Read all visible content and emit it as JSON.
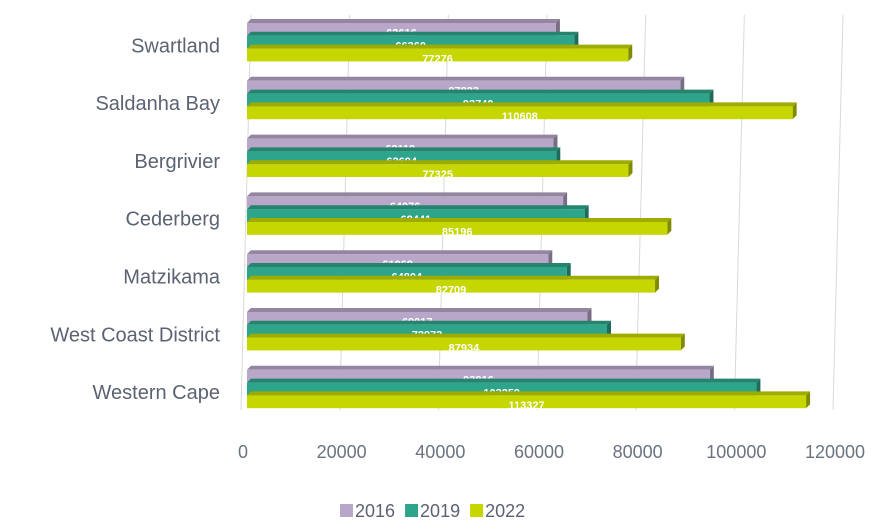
{
  "chart_data": {
    "type": "bar",
    "orientation": "horizontal",
    "categories": [
      "Swartland",
      "Saldanha Bay",
      "Bergrivier",
      "Cederberg",
      "Matzikama",
      "West Coast District",
      "Western Cape"
    ],
    "series": [
      {
        "name": "2016",
        "color": "#b9a7c9",
        "values": [
          62616,
          87823,
          62119,
          64076,
          61068,
          69017,
          93816
        ]
      },
      {
        "name": "2019",
        "color": "#2ea58a",
        "values": [
          66360,
          93740,
          62694,
          68441,
          64804,
          72973,
          103259
        ]
      },
      {
        "name": "2022",
        "color": "#c5d600",
        "values": [
          77276,
          110608,
          77325,
          85196,
          82709,
          87934,
          113327
        ]
      }
    ],
    "xlim": [
      0,
      120000
    ],
    "xticks": [
      0,
      20000,
      40000,
      60000,
      80000,
      100000,
      120000
    ],
    "grid": true,
    "legend": "bottom"
  }
}
